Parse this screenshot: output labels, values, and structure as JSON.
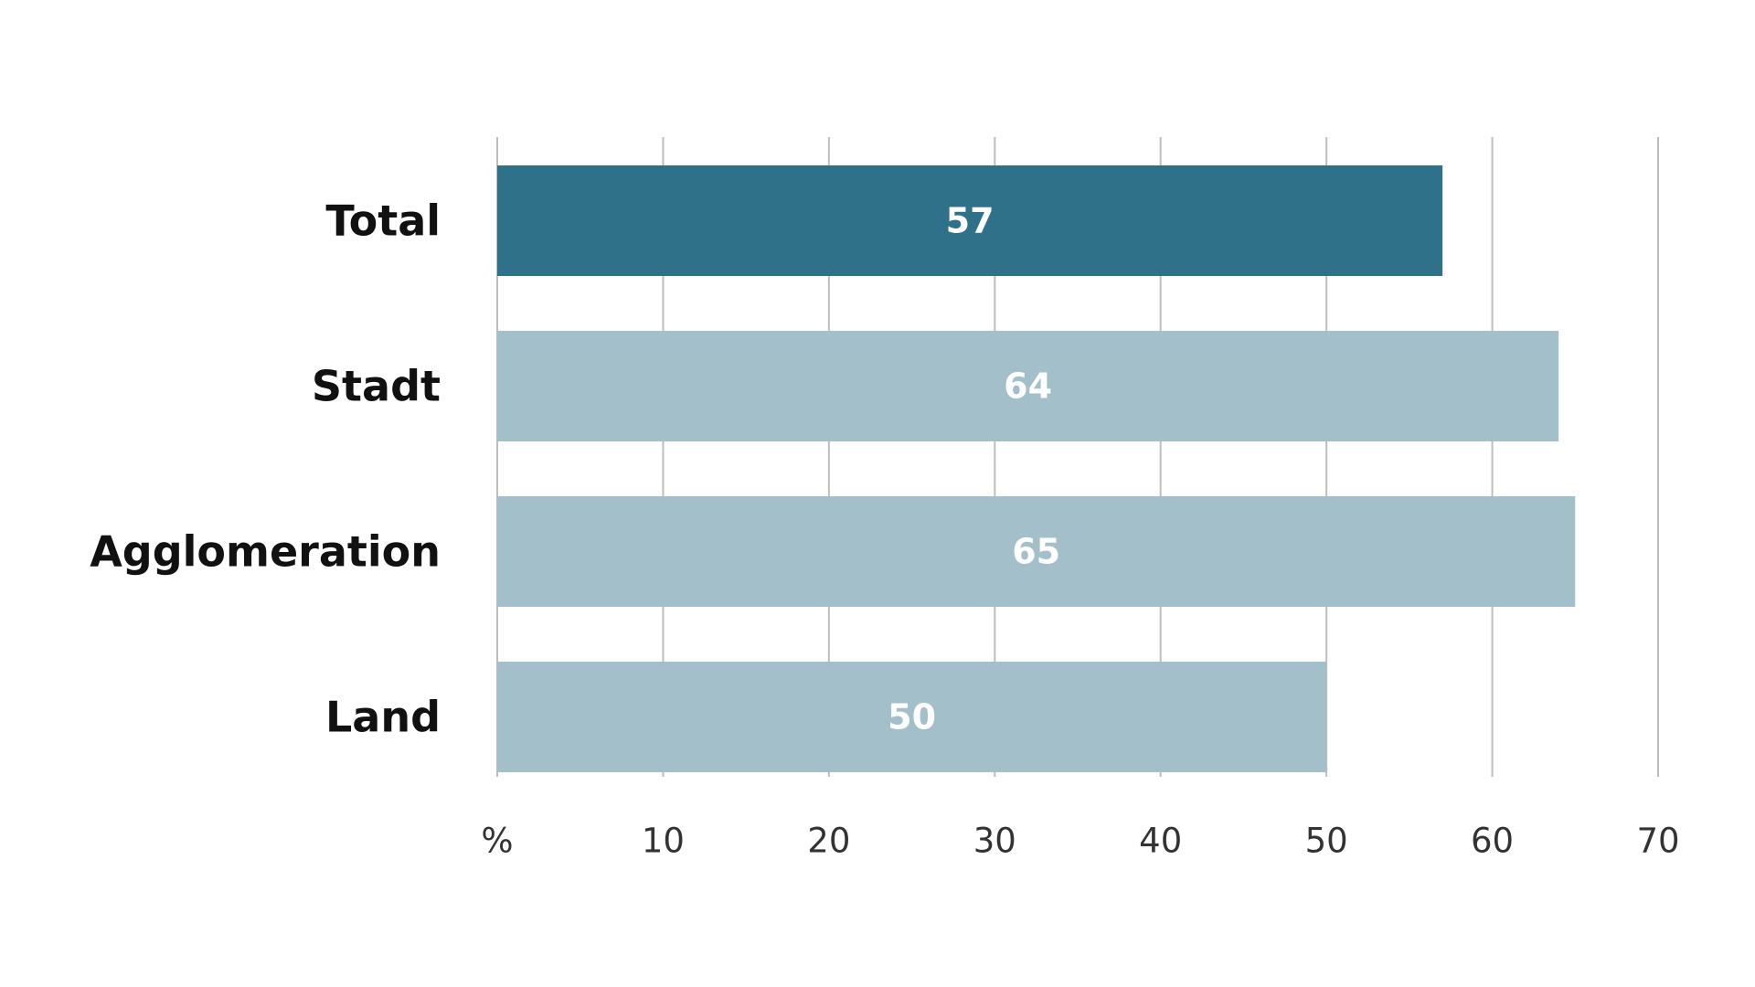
{
  "chart_data": {
    "type": "bar",
    "orientation": "horizontal",
    "categories": [
      "Total",
      "Stadt",
      "Agglomeration",
      "Land"
    ],
    "values": [
      57,
      64,
      65,
      50
    ],
    "bar_labels": [
      "57",
      "64",
      "65",
      "50"
    ],
    "highlight_index": 0,
    "colors": {
      "highlight": "#2f7189",
      "default": "#a3bfc9",
      "grid": "#bdbdbd",
      "label_text": "#ffffff",
      "category_text": "#111111",
      "tick_text": "#333333"
    },
    "xlim": [
      0,
      70
    ],
    "xticks": [
      0,
      10,
      20,
      30,
      40,
      50,
      60,
      70
    ],
    "xtick_labels": [
      "%",
      "10",
      "20",
      "30",
      "40",
      "50",
      "60",
      "70"
    ],
    "grid": true,
    "legend": "none"
  }
}
